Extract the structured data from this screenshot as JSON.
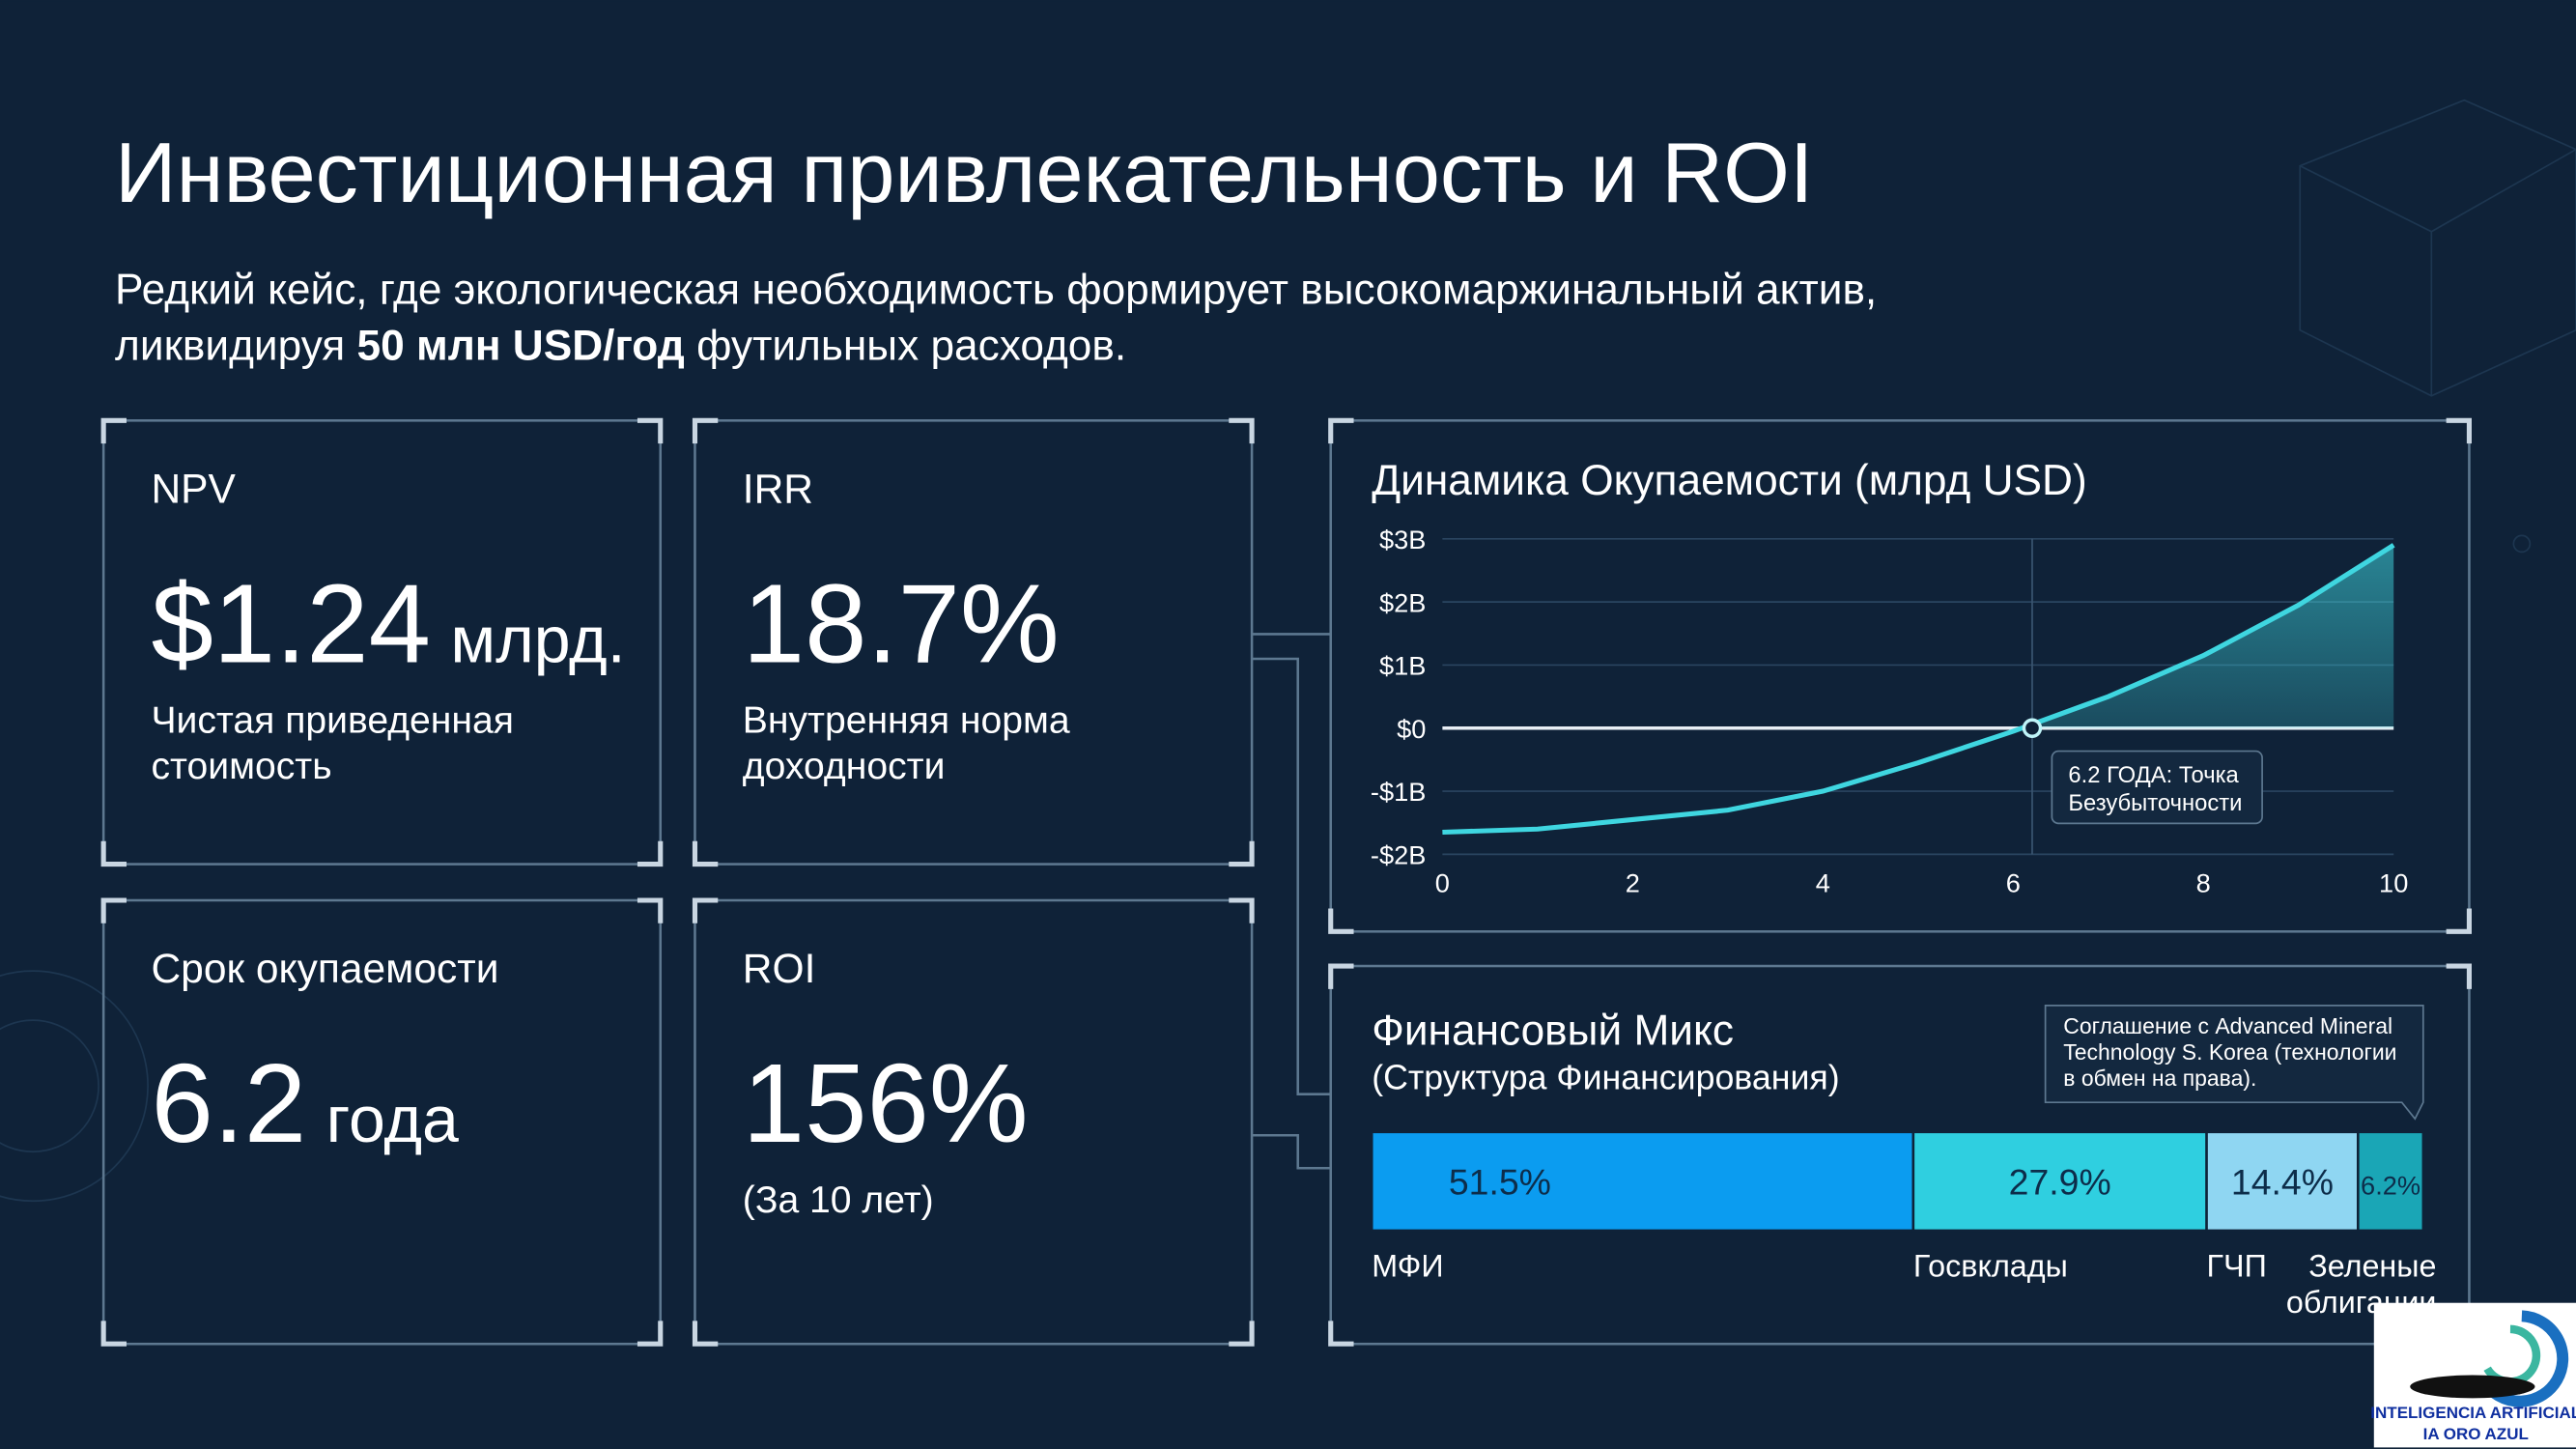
{
  "header": {
    "title": "Инвестиционная привлекательность и ROI",
    "subtitle": {
      "line1": "Редкий кейс, где экологическая необходимость формирует высокомаржинальный актив,",
      "line2_start": "ликвидируя ",
      "line2_bold": "50 млн USD/год",
      "line2_end": " футильных расходов."
    }
  },
  "cards": [
    {
      "label": "NPV",
      "value": "$1.24",
      "unit": "млрд.",
      "description": [
        "Чистая приведенная",
        "стоимость"
      ]
    },
    {
      "label": "IRR",
      "value": "18.7%",
      "description": [
        "Внутренняя норма",
        "доходности"
      ]
    },
    {
      "label": "Срок окупаемости",
      "value": "6.2",
      "unit": "года"
    },
    {
      "label": "ROI",
      "value": "156%",
      "description": [
        "(За 10 лет)"
      ]
    }
  ],
  "chart_data": [
    {
      "type": "line",
      "title": "Динамика Окупаемости (млрд USD)",
      "x": [
        0,
        1,
        2,
        3,
        4,
        5,
        6,
        7,
        8,
        9,
        10
      ],
      "series": [
        {
          "color": "#3fd6e0",
          "values": [
            -1.65,
            -1.6,
            -1.45,
            -1.3,
            -1.0,
            -0.55,
            -0.05,
            0.5,
            1.15,
            1.95,
            2.9
          ]
        }
      ],
      "xlim": [
        0,
        10
      ],
      "xticks": [
        0,
        2,
        4,
        6,
        8,
        10
      ],
      "ylim": [
        -2,
        3
      ],
      "yticks": [
        {
          "value": 3,
          "label": "$3B"
        },
        {
          "value": 2,
          "label": "$2B"
        },
        {
          "value": 1,
          "label": "$1B"
        },
        {
          "value": 0,
          "label": "$0"
        },
        {
          "value": -1,
          "label": "-$1B"
        },
        {
          "value": -2,
          "label": "-$2B"
        }
      ],
      "grid": true,
      "breakeven": {
        "x": 6.2,
        "y": 0,
        "label": [
          "6.2 ГОДА: Точка",
          "Безубыточности"
        ]
      }
    },
    {
      "type": "bar",
      "orientation": "horizontal",
      "stacked": true,
      "title": "Финансовый Микс",
      "subtitle": "(Структура Финансирования)",
      "note": [
        "Соглашение с Advanced Mineral",
        "Technology S. Korea (технологии",
        "в обмен на права)."
      ],
      "categories": [
        "МФИ",
        "Госвклады",
        "ГЧП",
        "Зеленые облигации"
      ],
      "values": [
        51.5,
        27.9,
        14.4,
        6.2
      ],
      "value_labels": [
        "51.5%",
        "27.9%",
        "14.4%",
        "6.2%"
      ],
      "colors": [
        "#0b9cf0",
        "#2fcfe0",
        "#8fd6f2",
        "#1aa6b6"
      ]
    }
  ],
  "logo": {
    "line1": "INTELIGENCIA ARTIFICIAL",
    "line2": "IA ORO AZUL"
  }
}
